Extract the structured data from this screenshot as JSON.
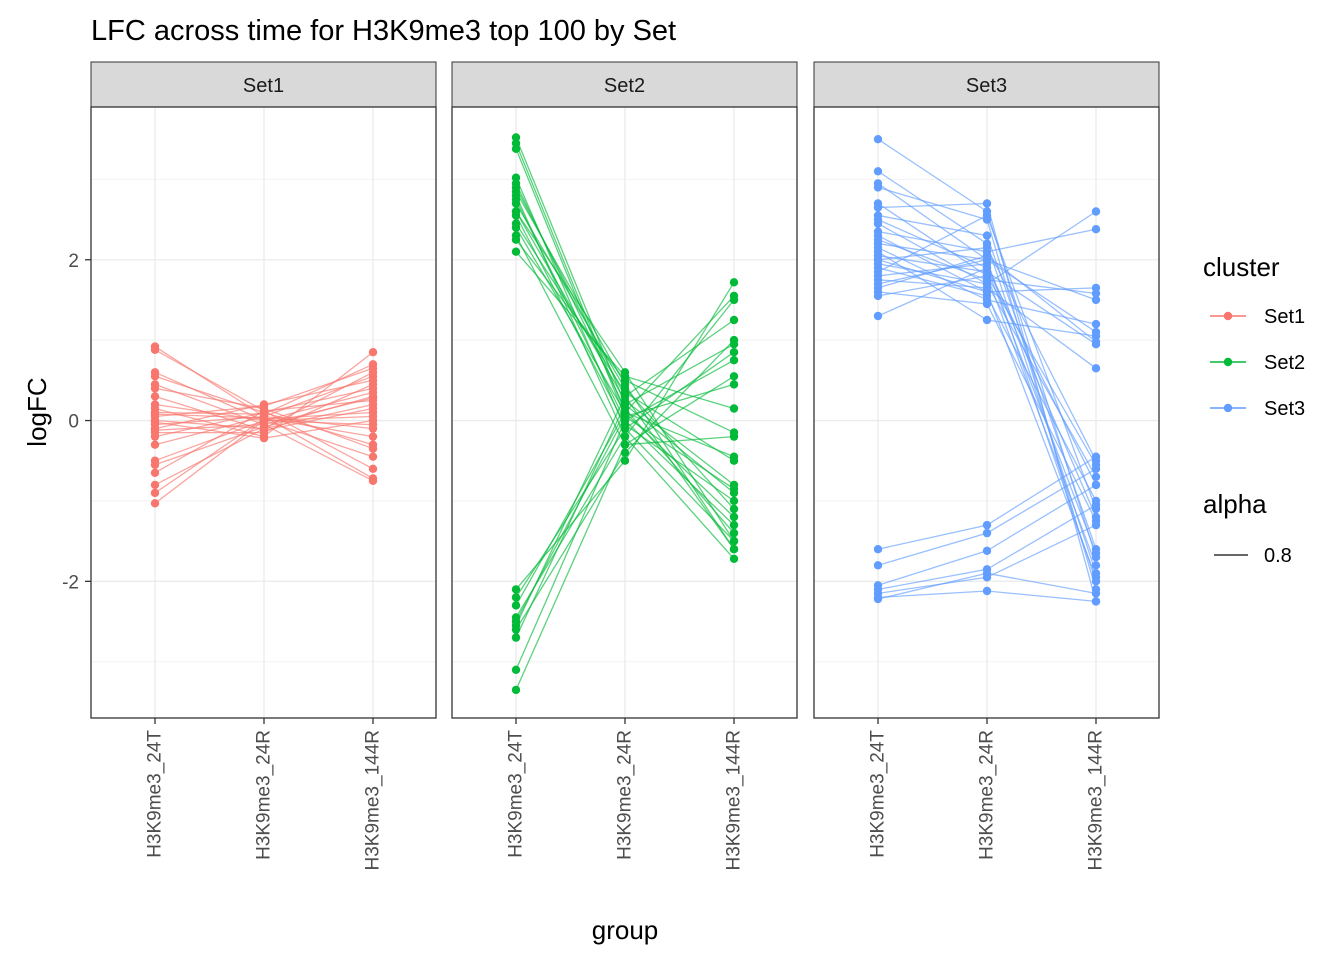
{
  "chart_data": {
    "type": "line",
    "title": "LFC across time for H3K9me3 top 100 by Set",
    "xlabel": "group",
    "ylabel": "logFC",
    "categories": [
      "H3K9me3_24T",
      "H3K9me3_24R",
      "H3K9me3_144R"
    ],
    "ylim": [
      -3.7,
      3.9
    ],
    "yticks": [
      -2,
      0,
      2
    ],
    "grid": true,
    "legend_position": "right",
    "legend": {
      "cluster_title": "cluster",
      "cluster_entries": [
        "Set1",
        "Set2",
        "Set3"
      ],
      "alpha_title": "alpha",
      "alpha_value": "0.8"
    },
    "facets": [
      {
        "name": "Set1",
        "color": "#F8766D",
        "series": [
          [
            0.92,
            0.05,
            -0.72
          ],
          [
            0.88,
            0.12,
            -0.6
          ],
          [
            0.6,
            0.0,
            -0.45
          ],
          [
            0.55,
            0.1,
            -0.3
          ],
          [
            0.45,
            -0.05,
            -0.75
          ],
          [
            0.4,
            0.15,
            -0.35
          ],
          [
            0.15,
            -0.2,
            0.85
          ],
          [
            0.1,
            0.08,
            0.7
          ],
          [
            0.05,
            0.18,
            0.65
          ],
          [
            0.0,
            -0.1,
            0.6
          ],
          [
            -0.05,
            0.05,
            0.55
          ],
          [
            -0.1,
            0.2,
            0.5
          ],
          [
            -0.15,
            -0.15,
            0.45
          ],
          [
            -0.2,
            0.1,
            0.4
          ],
          [
            -0.5,
            0.0,
            0.35
          ],
          [
            -0.55,
            -0.08,
            0.3
          ],
          [
            -0.65,
            0.12,
            0.25
          ],
          [
            -0.8,
            -0.1,
            0.2
          ],
          [
            -0.9,
            0.02,
            0.1
          ],
          [
            -1.03,
            0.0,
            0.05
          ],
          [
            0.3,
            -0.12,
            0.15
          ],
          [
            -0.3,
            0.05,
            -0.1
          ],
          [
            0.2,
            0.0,
            -0.05
          ],
          [
            -0.02,
            -0.22,
            0.0
          ],
          [
            0.08,
            0.03,
            -0.2
          ],
          [
            -0.12,
            -0.05,
            0.28
          ]
        ]
      },
      {
        "name": "Set2",
        "color": "#00BA38",
        "series": [
          [
            3.52,
            0.2,
            -0.9
          ],
          [
            3.45,
            0.1,
            -1.2
          ],
          [
            3.38,
            0.05,
            -0.85
          ],
          [
            3.02,
            -0.1,
            -1.5
          ],
          [
            2.95,
            0.15,
            -1.4
          ],
          [
            2.9,
            0.3,
            -1.6
          ],
          [
            2.8,
            -0.2,
            -1.72
          ],
          [
            2.75,
            0.0,
            -1.3
          ],
          [
            2.7,
            0.4,
            -1.1
          ],
          [
            2.6,
            0.25,
            -0.8
          ],
          [
            2.55,
            -0.05,
            -1.0
          ],
          [
            2.45,
            0.35,
            -0.5
          ],
          [
            2.4,
            0.1,
            -0.45
          ],
          [
            2.3,
            -0.3,
            -0.2
          ],
          [
            2.25,
            0.5,
            -0.15
          ],
          [
            2.1,
            0.55,
            0.15
          ],
          [
            2.6,
            0.6,
            -1.5
          ],
          [
            2.85,
            0.45,
            -1.6
          ],
          [
            -2.1,
            -0.5,
            1.72
          ],
          [
            -2.3,
            0.1,
            1.55
          ],
          [
            -2.45,
            -0.2,
            1.5
          ],
          [
            -2.55,
            0.3,
            1.25
          ],
          [
            -2.6,
            -0.4,
            1.0
          ],
          [
            -2.7,
            0.2,
            0.95
          ],
          [
            -3.1,
            0.0,
            0.75
          ],
          [
            -3.35,
            -0.3,
            0.55
          ],
          [
            -2.5,
            0.05,
            0.45
          ],
          [
            -2.2,
            -0.1,
            0.85
          ]
        ]
      },
      {
        "name": "Set3",
        "color": "#619CFF",
        "series": [
          [
            3.5,
            2.6,
            -1.7
          ],
          [
            3.1,
            2.2,
            -1.9
          ],
          [
            2.95,
            2.0,
            -2.0
          ],
          [
            2.9,
            2.5,
            -2.1
          ],
          [
            2.7,
            1.8,
            -1.8
          ],
          [
            2.65,
            2.7,
            -2.25
          ],
          [
            2.55,
            2.3,
            -1.6
          ],
          [
            2.5,
            1.9,
            -1.65
          ],
          [
            2.45,
            1.7,
            2.6
          ],
          [
            2.35,
            2.1,
            2.38
          ],
          [
            2.3,
            1.6,
            1.65
          ],
          [
            2.2,
            2.0,
            1.5
          ],
          [
            2.15,
            1.5,
            1.2
          ],
          [
            2.1,
            1.25,
            1.05
          ],
          [
            2.05,
            1.85,
            0.95
          ],
          [
            2.0,
            2.15,
            -0.5
          ],
          [
            1.95,
            1.7,
            -0.7
          ],
          [
            1.9,
            1.55,
            -1.0
          ],
          [
            1.85,
            2.55,
            -1.1
          ],
          [
            1.8,
            1.95,
            -1.2
          ],
          [
            1.75,
            1.65,
            0.65
          ],
          [
            1.7,
            2.0,
            1.1
          ],
          [
            1.6,
            1.45,
            -1.25
          ],
          [
            1.55,
            1.8,
            -0.55
          ],
          [
            1.3,
            1.9,
            -0.8
          ],
          [
            2.25,
            1.75,
            1.58
          ],
          [
            1.65,
            2.05,
            0.98
          ],
          [
            2.0,
            1.6,
            -1.95
          ],
          [
            -1.6,
            -1.3,
            -0.45
          ],
          [
            -1.8,
            -1.4,
            -0.6
          ],
          [
            -2.05,
            -1.62,
            -0.8
          ],
          [
            -2.1,
            -1.85,
            -1.05
          ],
          [
            -2.15,
            -1.95,
            -1.3
          ],
          [
            -2.2,
            -2.12,
            -2.25
          ],
          [
            -2.22,
            -1.9,
            -2.15
          ]
        ]
      }
    ]
  }
}
